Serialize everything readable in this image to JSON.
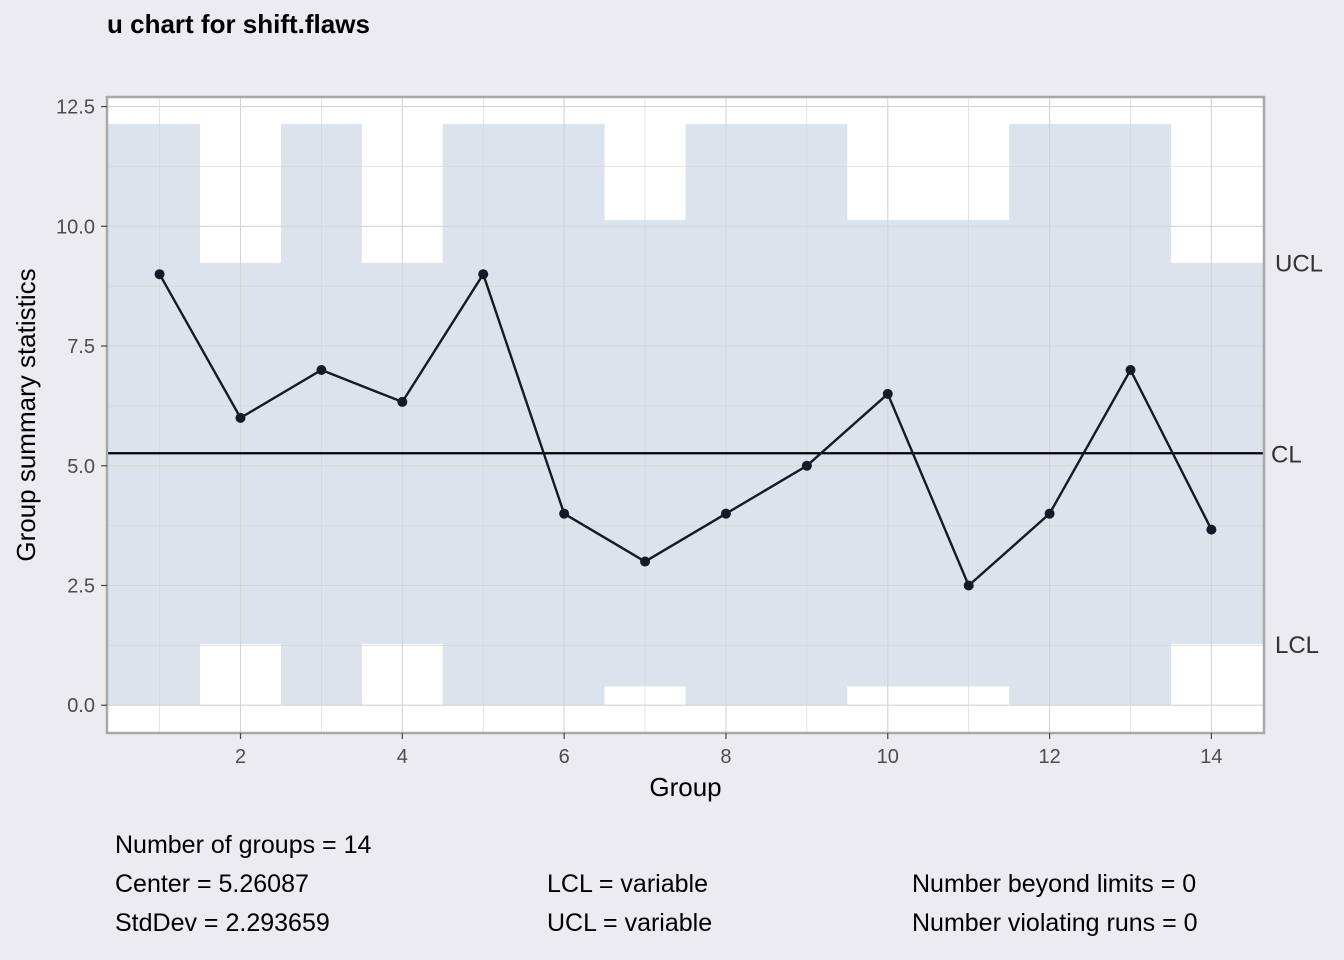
{
  "chart_data": {
    "type": "line",
    "title": "u chart for shift.flaws",
    "xlabel": "Group",
    "ylabel": "Group summary statistics",
    "xlim": [
      0.35,
      14.65
    ],
    "ylim": [
      -0.58,
      12.7
    ],
    "x_ticks": [
      2,
      4,
      6,
      8,
      10,
      12,
      14
    ],
    "y_ticks": [
      0.0,
      2.5,
      5.0,
      7.5,
      10.0,
      12.5
    ],
    "y_tick_labels": [
      "0.0",
      "2.5",
      "5.0",
      "7.5",
      "10.0",
      "12.5"
    ],
    "grid": true,
    "series": [
      {
        "x": [
          1,
          2,
          3,
          4,
          5,
          6,
          7,
          8,
          9,
          10,
          11,
          12,
          13,
          14
        ],
        "values": [
          9,
          6,
          7,
          6.333,
          9,
          4,
          3,
          4,
          5,
          6.5,
          2.5,
          4,
          7,
          3.667
        ]
      }
    ],
    "center_line": 5.26087,
    "ucl": [
      12.14,
      9.24,
      12.14,
      9.24,
      12.14,
      12.14,
      10.13,
      12.14,
      12.14,
      10.13,
      10.13,
      12.14,
      12.14,
      9.24
    ],
    "lcl": [
      0,
      1.28,
      0,
      1.28,
      0,
      0,
      0.39,
      0,
      0,
      0.39,
      0.39,
      0,
      0,
      1.28
    ],
    "limit_labels": {
      "ucl": "UCL",
      "cl": "CL",
      "lcl": "LCL"
    },
    "colors": {
      "background": "#ebebf0",
      "panel": "#ffffff",
      "limits_band": "#dde3ec",
      "line": "#151a28",
      "center_line": "#000000",
      "grid": "#d4d4d4"
    }
  },
  "stats": {
    "groups": "Number of groups = 14",
    "center": "Center = 5.26087",
    "stddev": "StdDev = 2.293659",
    "lcl": "LCL = variable",
    "ucl": "UCL = variable",
    "beyond": "Number beyond limits = 0",
    "violating": "Number violating runs = 0"
  }
}
